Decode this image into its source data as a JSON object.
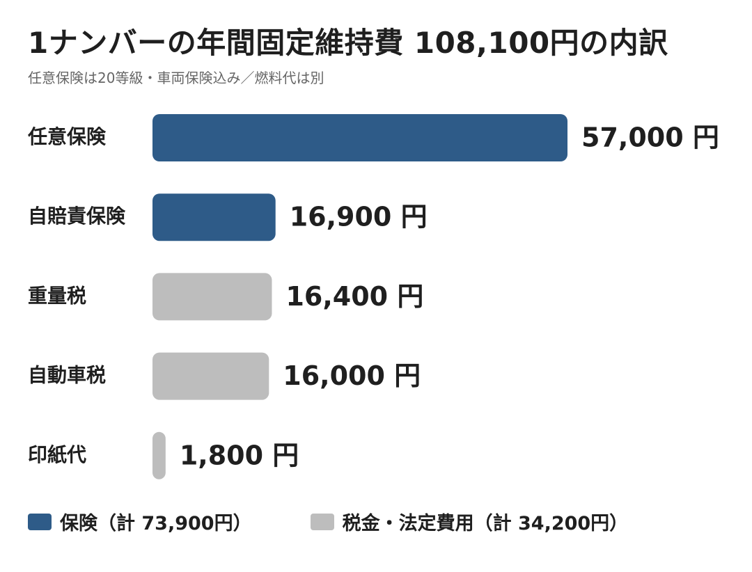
{
  "chart_data": {
    "type": "bar",
    "orientation": "horizontal",
    "title": "1ナンバーの年間固定維持費 108,100円の内訳",
    "subtitle": "任意保険は20等級・車両保険込み／燃料代は別",
    "unit": "円",
    "categories": [
      "任意保険",
      "自賠責保険",
      "重量税",
      "自動車税",
      "印紙代"
    ],
    "values": [
      57000,
      16900,
      16400,
      16000,
      1800
    ],
    "value_labels": [
      "57,000 円",
      "16,900 円",
      "16,400 円",
      "16,000 円",
      "1,800 円"
    ],
    "groups": [
      "insurance",
      "insurance",
      "tax",
      "tax",
      "tax"
    ],
    "xlim": [
      0,
      57000
    ],
    "grid": false,
    "legend_position": "bottom",
    "legend": [
      {
        "key": "insurance",
        "label": "保険（計 73,900円）",
        "color": "#2e5b88"
      },
      {
        "key": "tax",
        "label": "税金・法定費用（計 34,200円）",
        "color": "#bdbdbd"
      }
    ]
  }
}
